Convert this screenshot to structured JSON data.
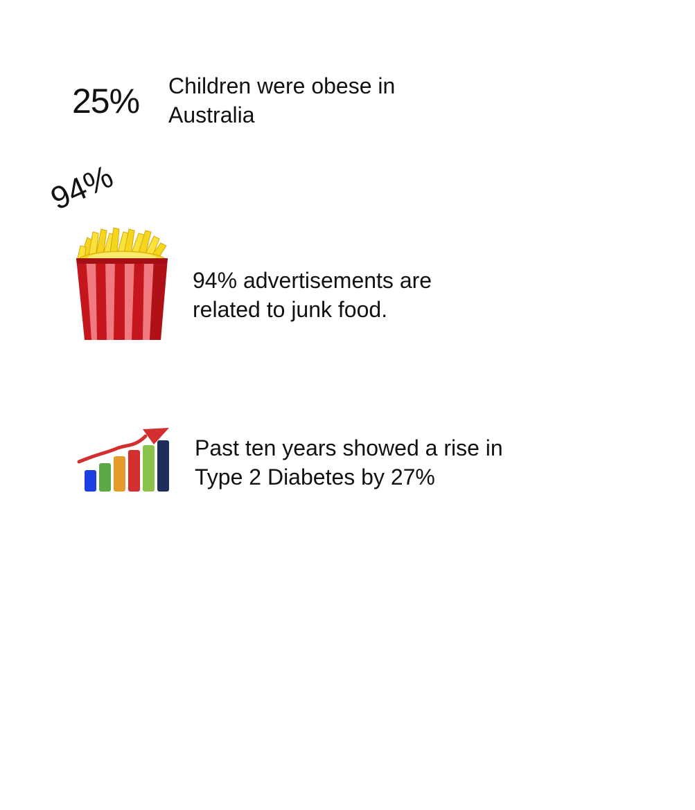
{
  "obesity": {
    "percent": "25%",
    "line1": "Children were obese in",
    "line2": "Australia"
  },
  "ads": {
    "percent_badge": "94%",
    "line1": "94% advertisements are",
    "line2": "related to junk food.",
    "icon": "french-fries-icon"
  },
  "diabetes": {
    "line1": "Past ten years showed a rise in",
    "line2": "Type 2 Diabetes by 27%",
    "icon": "rising-bar-chart-icon"
  },
  "colors": {
    "text": "#111111",
    "fries_red": "#d7191f",
    "fries_yellow": "#f6d51f",
    "arrow_red": "#d32f2f",
    "bar_colors": [
      "#1b3fe0",
      "#5aaa46",
      "#e59a2b",
      "#d32f2f",
      "#8bc34a",
      "#1d2d5c"
    ]
  }
}
